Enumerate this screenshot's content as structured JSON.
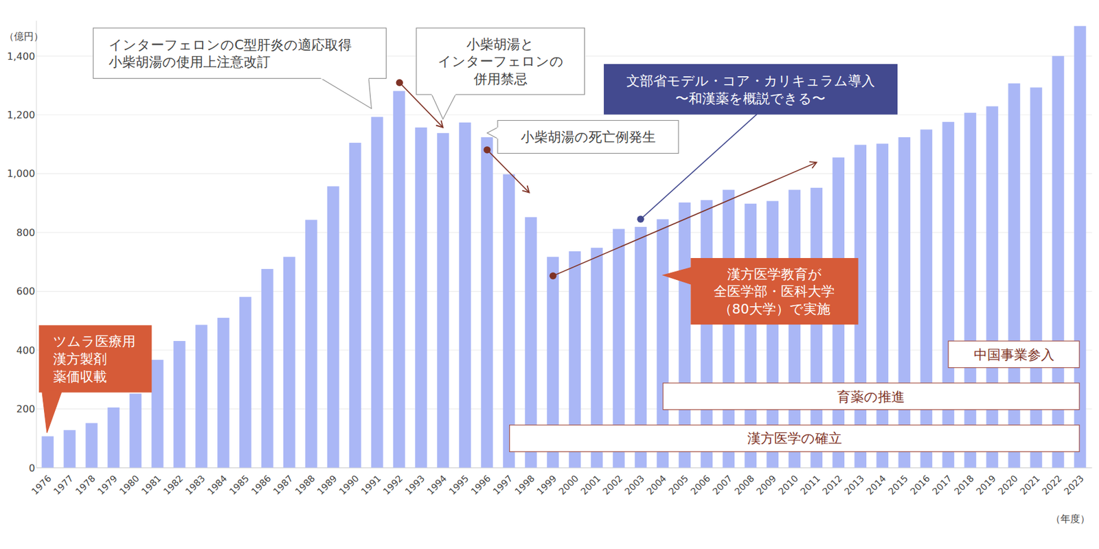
{
  "chart_data": {
    "type": "bar",
    "y_label": "（億円）",
    "x_label": "（年度）",
    "color": "#aab7f6",
    "grid": true,
    "categories": [
      "1976",
      "1977",
      "1978",
      "1979",
      "1980",
      "1981",
      "1982",
      "1983",
      "1984",
      "1985",
      "1986",
      "1987",
      "1988",
      "1989",
      "1990",
      "1991",
      "1992",
      "1993",
      "1994",
      "1995",
      "1996",
      "1997",
      "1998",
      "1999",
      "2000",
      "2001",
      "2002",
      "2003",
      "2004",
      "2005",
      "2006",
      "2007",
      "2008",
      "2009",
      "2010",
      "2011",
      "2012",
      "2013",
      "2014",
      "2015",
      "2016",
      "2017",
      "2018",
      "2019",
      "2020",
      "2021",
      "2022",
      "2023"
    ],
    "values": [
      107,
      128,
      152,
      205,
      252,
      367,
      431,
      486,
      510,
      581,
      676,
      717,
      843,
      957,
      1105,
      1193,
      1281,
      1157,
      1138,
      1174,
      1124,
      998,
      852,
      717,
      736,
      748,
      812,
      819,
      845,
      902,
      910,
      945,
      898,
      907,
      945,
      952,
      1055,
      1098,
      1102,
      1124,
      1150,
      1176,
      1207,
      1229,
      1307,
      1293,
      1400,
      1502
    ],
    "ylim": [
      0,
      1520
    ],
    "yticks": [
      0,
      200,
      400,
      600,
      800,
      {
        "value": 1000,
        "label": "1,000"
      },
      {
        "value": 1200,
        "label": "1,200"
      },
      {
        "value": 1400,
        "label": "1,400"
      }
    ],
    "annotations": [
      {
        "lines": [
          "インターフェロンのC型肝炎の適応取得",
          "小柴胡湯の使用上注意改訂"
        ]
      },
      {
        "lines": [
          "小柴胡湯と",
          "インターフェロンの",
          "併用禁忌"
        ]
      },
      {
        "lines": [
          "小柴胡湯の死亡例発生"
        ]
      },
      {
        "lines": [
          "文部省モデル・コア・カリキュラム導入",
          "〜和漢薬を概説できる〜"
        ]
      },
      {
        "lines": [
          "漢方医学教育が",
          "全医学部・医科大学",
          "（80大学）で実施"
        ]
      },
      {
        "lines": [
          "ツムラ医療用",
          "漢方製剤",
          "薬価収載"
        ]
      },
      {
        "lines": [
          "中国事業参入"
        ]
      },
      {
        "lines": [
          "育薬の推進"
        ]
      },
      {
        "lines": [
          "漢方医学の確立"
        ]
      }
    ]
  }
}
